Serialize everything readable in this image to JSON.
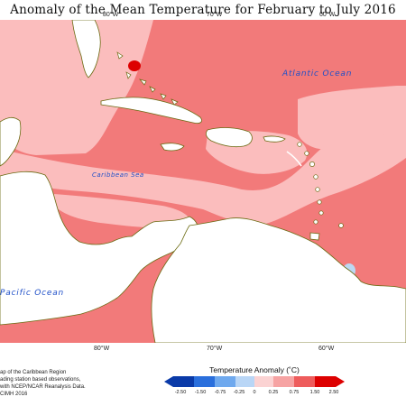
{
  "title": "Anomaly of the Mean Temperature for February to July 2016",
  "map": {
    "top_longitudes": [
      "80°W",
      "70°W",
      "60°W"
    ],
    "bottom_longitudes": [
      "80°W",
      "70°W",
      "60°W"
    ],
    "labels": {
      "atlantic": "Atlantic Ocean",
      "caribbean": "Caribbean Sea",
      "pacific": "Pacific Ocean"
    },
    "colors": {
      "ocean_light": "#fbbdbd",
      "ocean_medium": "#f27a7a",
      "ocean_strong": "#dd0000",
      "cool_spot": "#bcd8f2",
      "coastline": "#6b6b12",
      "land": "#ffffff",
      "sea_label": "#2050c8"
    }
  },
  "credits": {
    "line1": "ap of the Caribbean Region",
    "line2": "ading station based observations,",
    "line3": "with NCEP/NCAR Reanalysis Data.",
    "line4": "CIMH 2016"
  },
  "legend": {
    "title": "Temperature Anomaly (˚C)",
    "ticks": [
      "-2.50",
      "-1.50",
      "-0.75",
      "-0.25",
      "0",
      "0.25",
      "0.75",
      "1.50",
      "2.50"
    ],
    "colors": [
      "#0a3aa8",
      "#2a6fdc",
      "#6fa9ee",
      "#b9d6f6",
      "#ffffff",
      "#fbd3d3",
      "#f6a3a3",
      "#ee5c5c",
      "#dd0000"
    ]
  }
}
